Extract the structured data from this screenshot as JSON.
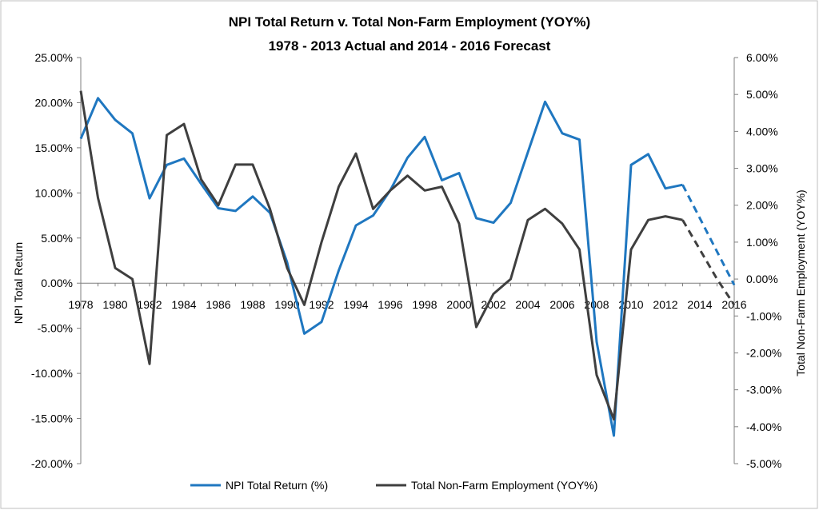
{
  "chart_data": {
    "type": "line",
    "title": [
      "NPI Total Return v. Total Non-Farm Employment (YOY%)",
      "1978 - 2013 Actual and 2014 - 2016 Forecast"
    ],
    "ylabel_left": "NPI Total Return",
    "ylabel_right": "Total Non-Farm Employment (YOY%)",
    "x_ticks": [
      "1978",
      "1980",
      "1982",
      "1984",
      "1986",
      "1988",
      "1990",
      "1992",
      "1994",
      "1996",
      "1998",
      "2000",
      "2002",
      "2004",
      "2006",
      "2008",
      "2010",
      "2012",
      "2014",
      "2016"
    ],
    "y_left_ticks": [
      "25.00%",
      "20.00%",
      "15.00%",
      "10.00%",
      "5.00%",
      "0.00%",
      "-5.00%",
      "-10.00%",
      "-15.00%",
      "-20.00%"
    ],
    "y_right_ticks": [
      "6.00%",
      "5.00%",
      "4.00%",
      "3.00%",
      "2.00%",
      "1.00%",
      "0.00%",
      "-1.00%",
      "-2.00%",
      "-3.00%",
      "-4.00%",
      "-5.00%"
    ],
    "y_left_range": [
      -20,
      25
    ],
    "y_right_range": [
      -5,
      6
    ],
    "x_range": [
      1978,
      2016
    ],
    "legend_position": "bottom",
    "series": [
      {
        "name": "NPI Total Return (%)",
        "axis": "left",
        "color": "#1f77c0",
        "x": [
          1978,
          1979,
          1980,
          1981,
          1982,
          1983,
          1984,
          1985,
          1986,
          1987,
          1988,
          1989,
          1990,
          1991,
          1992,
          1993,
          1994,
          1995,
          1996,
          1997,
          1998,
          1999,
          2000,
          2001,
          2002,
          2003,
          2004,
          2005,
          2006,
          2007,
          2008,
          2009,
          2010,
          2011,
          2012,
          2013
        ],
        "values": [
          16.0,
          20.5,
          18.1,
          16.6,
          9.4,
          13.1,
          13.8,
          11.0,
          8.3,
          8.0,
          9.6,
          7.8,
          2.3,
          -5.6,
          -4.3,
          1.4,
          6.4,
          7.5,
          10.3,
          13.9,
          16.2,
          11.4,
          12.2,
          7.2,
          6.7,
          8.9,
          14.5,
          20.1,
          16.6,
          15.9,
          -6.5,
          -16.9,
          13.1,
          14.3,
          10.5,
          10.9
        ],
        "forecast_x": [
          2013,
          2014,
          2015,
          2016
        ],
        "forecast_values": [
          10.9,
          7.2,
          3.5,
          -0.2
        ]
      },
      {
        "name": "Total Non-Farm Employment (YOY%)",
        "axis": "right",
        "color": "#3f3f3f",
        "x": [
          1978,
          1979,
          1980,
          1981,
          1982,
          1983,
          1984,
          1985,
          1986,
          1987,
          1988,
          1989,
          1990,
          1991,
          1992,
          1993,
          1994,
          1995,
          1996,
          1997,
          1998,
          1999,
          2000,
          2001,
          2002,
          2003,
          2004,
          2005,
          2006,
          2007,
          2008,
          2009,
          2010,
          2011,
          2012,
          2013
        ],
        "values": [
          5.1,
          2.2,
          0.3,
          0.0,
          -2.3,
          3.9,
          4.2,
          2.7,
          2.0,
          3.1,
          3.1,
          1.9,
          0.3,
          -0.7,
          1.0,
          2.5,
          3.4,
          1.9,
          2.4,
          2.8,
          2.4,
          2.5,
          1.5,
          -1.3,
          -0.4,
          0.0,
          1.6,
          1.9,
          1.5,
          0.8,
          -2.6,
          -3.8,
          0.8,
          1.6,
          1.7,
          1.6
        ],
        "forecast_x": [
          2013,
          2014,
          2015,
          2016
        ],
        "forecast_values": [
          1.6,
          0.8,
          0.0,
          -0.7
        ]
      }
    ]
  }
}
